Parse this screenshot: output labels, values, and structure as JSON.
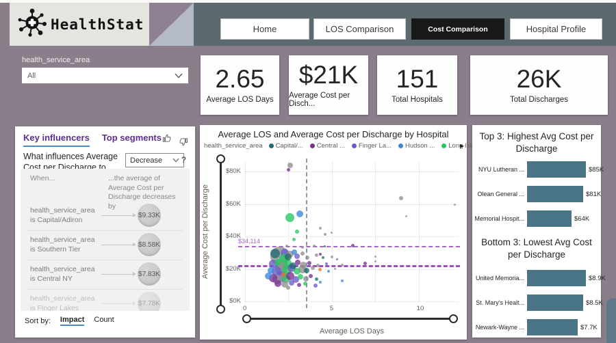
{
  "header": {
    "logo_text": "HealthStat",
    "nav_tabs": [
      {
        "label": "Home",
        "active": false
      },
      {
        "label": "LOS Comparison",
        "active": false
      },
      {
        "label": "Cost Comparison",
        "active": true
      },
      {
        "label": "Hospital Profile",
        "active": false
      }
    ]
  },
  "slicer": {
    "label": "health_service_area",
    "value": "All"
  },
  "kpi_cards": [
    {
      "value": "2.65",
      "label": "Average LOS Days"
    },
    {
      "value": "$21K",
      "label": "Average Cost per Disch..."
    },
    {
      "value": "151",
      "label": "Total Hospitals"
    },
    {
      "value": "26K",
      "label": "Total Discharges"
    }
  ],
  "key_influencers": {
    "tab_influencers": "Key influencers",
    "tab_segments": "Top segments",
    "question_prefix": "What influences Average Cost per Discharge to",
    "dropdown_value": "Decrease",
    "help_label": "?",
    "col_when": "When...",
    "col_effect": "...the average of Average Cost per Discharge decreases by",
    "rows": [
      {
        "condition": "health_service_area is Capital/Adiron",
        "impact": "$9.33K",
        "faded": false
      },
      {
        "condition": "health_service_area is Southern Tier",
        "impact": "$8.58K",
        "faded": false
      },
      {
        "condition": "health_service_area is Central NY",
        "impact": "$7.83K",
        "faded": false
      },
      {
        "condition": "health_service_area is Finger Lakes",
        "impact": "$7.78K",
        "faded": true
      }
    ],
    "sort_by_label": "Sort by:",
    "sort_options": [
      {
        "label": "Impact",
        "active": true
      },
      {
        "label": "Count",
        "active": false
      }
    ]
  },
  "chart_data": [
    {
      "type": "scatter",
      "title": "Average LOS and Average Cost per Discharge by Hospital",
      "xlabel": "Average LOS Days",
      "ylabel": "Average Cost per Discharge",
      "legend_title": "health_service_area",
      "legend_position": "top",
      "legend_overflow_arrow": "▶",
      "xlim": [
        0,
        12.3
      ],
      "ylim_k": [
        0,
        86
      ],
      "x_ticks": [
        0,
        5,
        10
      ],
      "x_gridlines": [
        0,
        2.5,
        5,
        7.5,
        10
      ],
      "y_ticks_k": [
        0,
        20,
        40,
        60,
        80
      ],
      "y_tick_labels": [
        "$0K",
        "$20K",
        "$40K",
        "$60K",
        "$80K"
      ],
      "grid": true,
      "palette": {
        "gray": "#909090",
        "capital": "#1E6C70",
        "central": "#7A2E8E",
        "finger": "#6A5BCB",
        "hudson": "#3D87D8",
        "longisland": "#27C55F",
        "orange": "#E8761E"
      },
      "legend_items": [
        {
          "label": "Capital/...",
          "key": "capital"
        },
        {
          "label": "Central ...",
          "key": "central"
        },
        {
          "label": "Finger La...",
          "key": "finger"
        },
        {
          "label": "Hudson ...",
          "key": "hudson"
        },
        {
          "label": "Long Isla...",
          "key": "longisland"
        }
      ],
      "reference_lines": [
        {
          "axis": "y",
          "value_k": 34.114,
          "label": "$34,114",
          "color": "#A864C8",
          "thickness": 2
        },
        {
          "axis": "y",
          "value_k": 22.5,
          "label": "",
          "color": "#9A4FC0",
          "thickness": 3
        },
        {
          "axis": "x",
          "value": 3.5,
          "label": "",
          "color": "#7E9BB5",
          "thickness": 2
        }
      ],
      "points": [
        {
          "x": 2.6,
          "y": 84,
          "r": 4,
          "g": "gray"
        },
        {
          "x": 2.5,
          "y": 81,
          "r": 2.5,
          "g": "central"
        },
        {
          "x": 9.0,
          "y": 63.5,
          "r": 3,
          "g": "gray"
        },
        {
          "x": 9.3,
          "y": 52.5,
          "r": 1.5,
          "g": "gray"
        },
        {
          "x": 12.1,
          "y": 59.5,
          "r": 1.5,
          "g": "gray"
        },
        {
          "x": 3.15,
          "y": 54,
          "r": 5,
          "g": "hudson"
        },
        {
          "x": 2.6,
          "y": 51.5,
          "r": 6.5,
          "g": "longisland"
        },
        {
          "x": 3.0,
          "y": 43,
          "r": 3,
          "g": "longisland"
        },
        {
          "x": 4.35,
          "y": 45,
          "r": 2,
          "g": "gray"
        },
        {
          "x": 4.6,
          "y": 41.5,
          "r": 2,
          "g": "gray"
        },
        {
          "x": 5.0,
          "y": 42.5,
          "r": 1.5,
          "g": "gray"
        },
        {
          "x": 2.8,
          "y": 38,
          "r": 2.5,
          "g": "longisland"
        },
        {
          "x": 6.2,
          "y": 34.2,
          "r": 2.5,
          "g": "central"
        },
        {
          "x": 4.0,
          "y": 34,
          "r": 2,
          "g": "gray"
        },
        {
          "x": 4.6,
          "y": 33.8,
          "r": 1.5,
          "g": "capital"
        },
        {
          "x": 2.4,
          "y": 34.2,
          "r": 2,
          "g": "gray"
        },
        {
          "x": 3.3,
          "y": 33.5,
          "r": 2,
          "g": "gray"
        },
        {
          "x": 2.0,
          "y": 28,
          "r": 14,
          "g": "gray"
        },
        {
          "x": 1.75,
          "y": 29.5,
          "r": 7,
          "g": "capital"
        },
        {
          "x": 2.3,
          "y": 30,
          "r": 6,
          "g": "finger"
        },
        {
          "x": 2.6,
          "y": 29,
          "r": 5,
          "g": "gray"
        },
        {
          "x": 2.85,
          "y": 30.5,
          "r": 4,
          "g": "hudson"
        },
        {
          "x": 2.2,
          "y": 26.5,
          "r": 6,
          "g": "longisland"
        },
        {
          "x": 2.5,
          "y": 27.5,
          "r": 5,
          "g": "capital"
        },
        {
          "x": 3.0,
          "y": 28,
          "r": 4,
          "g": "finger"
        },
        {
          "x": 3.3,
          "y": 29.5,
          "r": 3,
          "g": "gray"
        },
        {
          "x": 3.6,
          "y": 27,
          "r": 3,
          "g": "gray"
        },
        {
          "x": 4.1,
          "y": 28.5,
          "r": 2.5,
          "g": "gray"
        },
        {
          "x": 4.5,
          "y": 27,
          "r": 2,
          "g": "capital"
        },
        {
          "x": 4.35,
          "y": 29,
          "r": 2,
          "g": "central"
        },
        {
          "x": 5.0,
          "y": 27.5,
          "r": 2,
          "g": "gray"
        },
        {
          "x": 5.3,
          "y": 26,
          "r": 1.5,
          "g": "finger"
        },
        {
          "x": 7.5,
          "y": 27.5,
          "r": 1.5,
          "g": "gray"
        },
        {
          "x": 1.6,
          "y": 23,
          "r": 6,
          "g": "finger"
        },
        {
          "x": 1.9,
          "y": 24,
          "r": 5,
          "g": "longisland"
        },
        {
          "x": 2.15,
          "y": 22.5,
          "r": 8,
          "g": "gray"
        },
        {
          "x": 2.45,
          "y": 23.5,
          "r": 6,
          "g": "longisland"
        },
        {
          "x": 2.75,
          "y": 22,
          "r": 5,
          "g": "capital"
        },
        {
          "x": 3.05,
          "y": 24,
          "r": 4,
          "g": "central"
        },
        {
          "x": 3.35,
          "y": 22.5,
          "r": 5,
          "g": "gray"
        },
        {
          "x": 3.7,
          "y": 23.5,
          "r": 3,
          "g": "central"
        },
        {
          "x": 4.2,
          "y": 22,
          "r": 2.5,
          "g": "gray"
        },
        {
          "x": 4.7,
          "y": 23,
          "r": 2,
          "g": "finger"
        },
        {
          "x": 5.6,
          "y": 22.5,
          "r": 2,
          "g": "gray"
        },
        {
          "x": 6.9,
          "y": 23.5,
          "r": 2.5,
          "g": "central"
        },
        {
          "x": 7.5,
          "y": 24.5,
          "r": 1.5,
          "g": "gray"
        },
        {
          "x": 1.5,
          "y": 19,
          "r": 5,
          "g": "hudson"
        },
        {
          "x": 1.8,
          "y": 18.5,
          "r": 7,
          "g": "finger"
        },
        {
          "x": 2.1,
          "y": 20,
          "r": 9,
          "g": "gray"
        },
        {
          "x": 2.4,
          "y": 19.5,
          "r": 7,
          "g": "longisland"
        },
        {
          "x": 2.7,
          "y": 20.5,
          "r": 6,
          "g": "finger"
        },
        {
          "x": 3.0,
          "y": 18.5,
          "r": 5,
          "g": "longisland"
        },
        {
          "x": 3.3,
          "y": 20,
          "r": 6,
          "g": "gray"
        },
        {
          "x": 3.55,
          "y": 19,
          "r": 4,
          "g": "capital"
        },
        {
          "x": 3.9,
          "y": 20.5,
          "r": 3,
          "g": "gray"
        },
        {
          "x": 4.3,
          "y": 19.5,
          "r": 2.5,
          "g": "orange"
        },
        {
          "x": 4.8,
          "y": 18.5,
          "r": 2,
          "g": "hudson"
        },
        {
          "x": 5.2,
          "y": 20,
          "r": 1.5,
          "g": "gray"
        },
        {
          "x": 1.35,
          "y": 15.5,
          "r": 5,
          "g": "hudson"
        },
        {
          "x": 1.6,
          "y": 14.5,
          "r": 6,
          "g": "central"
        },
        {
          "x": 1.85,
          "y": 13.5,
          "r": 7,
          "g": "gray"
        },
        {
          "x": 2.1,
          "y": 15,
          "r": 8,
          "g": "finger"
        },
        {
          "x": 2.35,
          "y": 14,
          "r": 6,
          "g": "longisland"
        },
        {
          "x": 2.6,
          "y": 15.5,
          "r": 6,
          "g": "central"
        },
        {
          "x": 2.9,
          "y": 13.5,
          "r": 5,
          "g": "finger"
        },
        {
          "x": 3.2,
          "y": 15,
          "r": 4,
          "g": "longisland"
        },
        {
          "x": 3.5,
          "y": 14,
          "r": 4,
          "g": "gray"
        },
        {
          "x": 3.8,
          "y": 15.5,
          "r": 3,
          "g": "central"
        },
        {
          "x": 4.1,
          "y": 13.5,
          "r": 2.5,
          "g": "capital"
        },
        {
          "x": 2.2,
          "y": 16.5,
          "r": 3,
          "g": "orange"
        },
        {
          "x": 1.9,
          "y": 11,
          "r": 5,
          "g": "central"
        },
        {
          "x": 2.3,
          "y": 10.5,
          "r": 5,
          "g": "gray"
        },
        {
          "x": 2.7,
          "y": 11.5,
          "r": 4,
          "g": "finger"
        },
        {
          "x": 3.1,
          "y": 10,
          "r": 3,
          "g": "central"
        },
        {
          "x": 3.45,
          "y": 11,
          "r": 3,
          "g": "longisland"
        },
        {
          "x": 4.35,
          "y": 12,
          "r": 2,
          "g": "hudson"
        },
        {
          "x": 5.6,
          "y": 12.5,
          "r": 2,
          "g": "hudson"
        },
        {
          "x": 4.05,
          "y": 9.5,
          "r": 3,
          "g": "finger"
        },
        {
          "x": 2.5,
          "y": 8.5,
          "r": 3,
          "g": "gray"
        }
      ]
    },
    {
      "type": "bar",
      "title": "Top 3: Highest Avg Cost per Discharge",
      "orientation": "horizontal",
      "categories": [
        "NYU Lutheran ...",
        "Olean General ...",
        "Memorial Hospit..."
      ],
      "values_k": [
        85,
        81,
        64
      ],
      "value_labels": [
        "$85K",
        "$81K",
        "$64K"
      ],
      "xlim_k": [
        0,
        85
      ],
      "bar_color": "#4A7586"
    },
    {
      "type": "bar",
      "title": "Bottom 3: Lowest Avg Cost per Discharge",
      "orientation": "horizontal",
      "categories": [
        "United Memoria...",
        "St. Mary's Healt...",
        "Newark-Wayne ..."
      ],
      "values_k": [
        8.9,
        8.5,
        7.7
      ],
      "value_labels": [
        "$8.9K",
        "$8.5K",
        "$7.7K"
      ],
      "xlim_k": [
        0,
        8.9
      ],
      "bar_color": "#4A7586"
    }
  ],
  "colors": {
    "page_bg": "#8A7E8B",
    "header_band": "#5B6A6E",
    "logo_plate": "#E6E4DF",
    "active_tab_bg": "#181818",
    "ki_accent": "#5C2E91",
    "bar_teal": "#4A7586"
  }
}
